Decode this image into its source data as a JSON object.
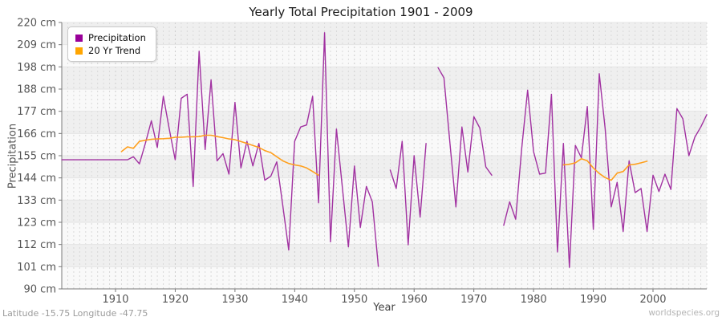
{
  "title": "Yearly Total Precipitation 1901 - 2009",
  "footer": {
    "left": "Latitude -15.75 Longitude -47.75",
    "right": "worldspecies.org"
  },
  "legend": [
    {
      "label": "Precipitation",
      "color": "#990099"
    },
    {
      "label": "20 Yr Trend",
      "color": "#FFA500"
    }
  ],
  "colors": {
    "precipitation_line": "#A132A1",
    "trend_line": "#FFA01E",
    "band_dark": "#efefef",
    "band_light": "#f9f9f9",
    "grid_vertical": "#d9d9d9",
    "grid_horizontal": "#e4e4e4",
    "axis": "#7a7a7a",
    "tick_text": "#555555"
  },
  "chart_data": {
    "type": "line",
    "title": "Yearly Total Precipitation 1901 - 2009",
    "xlabel": "Year",
    "ylabel": "Precipitation",
    "xlim": [
      1901,
      2009
    ],
    "ylim": [
      90,
      220
    ],
    "grid": "vertical-dashed-per-year, horizontal striped bands",
    "legend_position": "top-left",
    "x_ticks": [
      1910,
      1920,
      1930,
      1940,
      1950,
      1960,
      1970,
      1980,
      1990,
      2000
    ],
    "y_tick_labels": [
      "220 cm",
      "209 cm",
      "198 cm",
      "188 cm",
      "177 cm",
      "166 cm",
      "155 cm",
      "144 cm",
      "133 cm",
      "123 cm",
      "112 cm",
      "101 cm",
      "90 cm"
    ],
    "note": "null = missing year (gap in line)",
    "series": [
      {
        "name": "Precipitation",
        "values": [
          153,
          153,
          153,
          153,
          153,
          153,
          153,
          153,
          153,
          153,
          153,
          153,
          154.5,
          151,
          161,
          172,
          159,
          184,
          168,
          153,
          183,
          185,
          140,
          206,
          158,
          192,
          152.5,
          156,
          146,
          181,
          149,
          162,
          150,
          161,
          143,
          145,
          152,
          131,
          109,
          162,
          169,
          170,
          184,
          132,
          215,
          113,
          168,
          139,
          110.5,
          150,
          120,
          140,
          132.5,
          101,
          null,
          148,
          139,
          162,
          111.5,
          155,
          125,
          161,
          null,
          198,
          193,
          161,
          130,
          169,
          147,
          174,
          168.5,
          149.5,
          145.5,
          null,
          121,
          132.5,
          124,
          158,
          187,
          157,
          146,
          146.5,
          185,
          108,
          161,
          100.5,
          160,
          154,
          179,
          119,
          195,
          168,
          130,
          142,
          118,
          152.5,
          137,
          139,
          118,
          145.5,
          137.5,
          146,
          138.5,
          178,
          173,
          155,
          164,
          169,
          175
        ]
      },
      {
        "name": "20 Yr Trend",
        "values": [
          null,
          null,
          null,
          null,
          null,
          null,
          null,
          null,
          null,
          null,
          157,
          159.3,
          158.6,
          162,
          162.5,
          163,
          163.2,
          163.3,
          163.5,
          164,
          164,
          164.2,
          164.2,
          164.3,
          165,
          165,
          164.3,
          163.8,
          163.2,
          162.8,
          161.9,
          161,
          160,
          159,
          157.5,
          156.5,
          154.5,
          152.5,
          151.2,
          150.5,
          150,
          149,
          147.3,
          145.5,
          null,
          null,
          null,
          null,
          null,
          null,
          null,
          null,
          null,
          null,
          null,
          null,
          null,
          null,
          null,
          null,
          null,
          null,
          null,
          null,
          null,
          null,
          null,
          null,
          null,
          null,
          null,
          null,
          null,
          null,
          null,
          null,
          null,
          null,
          null,
          null,
          null,
          null,
          null,
          null,
          150.5,
          150.8,
          151.5,
          153.5,
          152.5,
          149,
          146.3,
          144.3,
          143,
          146.5,
          147.3,
          150.5,
          150.8,
          151.5,
          152.3,
          null,
          null,
          null,
          null,
          null,
          null,
          null,
          null,
          null,
          null
        ]
      }
    ]
  }
}
